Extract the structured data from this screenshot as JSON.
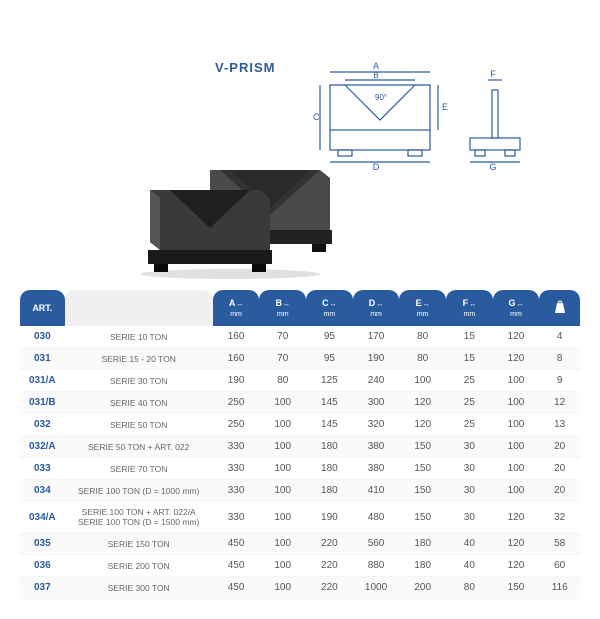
{
  "title": "V-PRISM",
  "drawing": {
    "angle_label": "90°",
    "dims": [
      "A",
      "B",
      "C",
      "D",
      "E",
      "F",
      "G"
    ],
    "stroke": "#2a5b9e"
  },
  "columns": [
    {
      "key": "art",
      "label": "ART.",
      "class": "art"
    },
    {
      "key": "desc",
      "label": "",
      "class": "blank"
    },
    {
      "key": "A",
      "label": "A",
      "unit": "mm",
      "arrows": true
    },
    {
      "key": "B",
      "label": "B",
      "unit": "mm",
      "arrows": true
    },
    {
      "key": "C",
      "label": "C",
      "unit": "mm",
      "arrows": true
    },
    {
      "key": "D",
      "label": "D",
      "unit": "mm",
      "arrows": true
    },
    {
      "key": "E",
      "label": "E",
      "unit": "mm",
      "arrows": true
    },
    {
      "key": "F",
      "label": "F",
      "unit": "mm",
      "arrows": true
    },
    {
      "key": "G",
      "label": "G",
      "unit": "mm",
      "arrows": true
    },
    {
      "key": "kg",
      "label": "KG",
      "icon": "weight"
    }
  ],
  "rows": [
    {
      "art": "030",
      "desc": "SERIE 10 TON",
      "A": "160",
      "B": "70",
      "C": "95",
      "D": "170",
      "E": "80",
      "F": "15",
      "G": "120",
      "kg": "4"
    },
    {
      "art": "031",
      "desc": "SERIE 15 - 20 TON",
      "A": "160",
      "B": "70",
      "C": "95",
      "D": "190",
      "E": "80",
      "F": "15",
      "G": "120",
      "kg": "8"
    },
    {
      "art": "031/A",
      "desc": "SERIE 30 TON",
      "A": "190",
      "B": "80",
      "C": "125",
      "D": "240",
      "E": "100",
      "F": "25",
      "G": "100",
      "kg": "9"
    },
    {
      "art": "031/B",
      "desc": "SERIE 40 TON",
      "A": "250",
      "B": "100",
      "C": "145",
      "D": "300",
      "E": "120",
      "F": "25",
      "G": "100",
      "kg": "12"
    },
    {
      "art": "032",
      "desc": "SERIE 50 TON",
      "A": "250",
      "B": "100",
      "C": "145",
      "D": "320",
      "E": "120",
      "F": "25",
      "G": "100",
      "kg": "13"
    },
    {
      "art": "032/A",
      "desc": "SERIE 50 TON + ART. 022",
      "A": "330",
      "B": "100",
      "C": "180",
      "D": "380",
      "E": "150",
      "F": "30",
      "G": "100",
      "kg": "20"
    },
    {
      "art": "033",
      "desc": "SERIE 70 TON",
      "A": "330",
      "B": "100",
      "C": "180",
      "D": "380",
      "E": "150",
      "F": "30",
      "G": "100",
      "kg": "20"
    },
    {
      "art": "034",
      "desc": "SERIE 100 TON (D = 1000 mm)",
      "A": "330",
      "B": "100",
      "C": "180",
      "D": "410",
      "E": "150",
      "F": "30",
      "G": "100",
      "kg": "20"
    },
    {
      "art": "034/A",
      "desc": "SERIE 100 TON + ART. 022/A\nSERIE 100 TON (D = 1500 mm)",
      "A": "330",
      "B": "100",
      "C": "190",
      "D": "480",
      "E": "150",
      "F": "30",
      "G": "120",
      "kg": "32"
    },
    {
      "art": "035",
      "desc": "SERIE 150 TON",
      "A": "450",
      "B": "100",
      "C": "220",
      "D": "560",
      "E": "180",
      "F": "40",
      "G": "120",
      "kg": "58"
    },
    {
      "art": "036",
      "desc": "SERIE 200 TON",
      "A": "450",
      "B": "100",
      "C": "220",
      "D": "880",
      "E": "180",
      "F": "40",
      "G": "120",
      "kg": "60"
    },
    {
      "art": "037",
      "desc": "SERIE 300 TON",
      "A": "450",
      "B": "100",
      "C": "220",
      "D": "1000",
      "E": "200",
      "F": "80",
      "G": "150",
      "kg": "116"
    }
  ],
  "style": {
    "header_bg": "#2a5b9e",
    "header_fg": "#ffffff",
    "art_color": "#2a5b9e",
    "cell_color": "#555555",
    "row_alt_bg": "#fafafa",
    "title_fontsize": 13,
    "header_fontsize": 9,
    "cell_fontsize": 10
  }
}
